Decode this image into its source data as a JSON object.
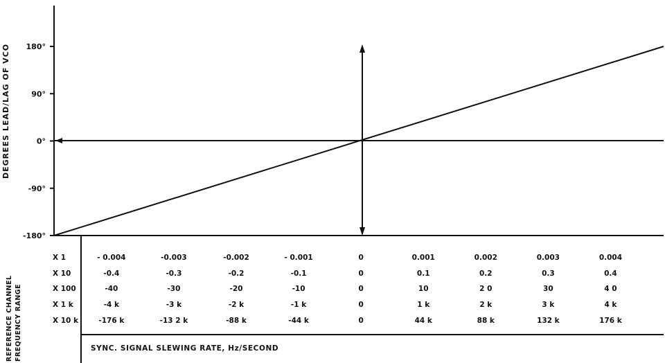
{
  "chart_data": {
    "type": "line",
    "ylabel": "DEGREES LEAD/LAG OF VCO",
    "xlabel": "SYNC. SIGNAL SLEWING RATE, Hz/SECOND",
    "side_label_1": "REFERENCE CHANNEL",
    "side_label_2": "FREQUENCY RANGE",
    "ylim": [
      -180,
      180
    ],
    "yticks": [
      -180,
      -90,
      0,
      90,
      180
    ],
    "ytick_labels": [
      "-180°",
      "-90°",
      "0°",
      "90°",
      "180°"
    ],
    "xlim": [
      -0.00492,
      0.00485
    ],
    "series": [
      {
        "x": [
          -0.00492,
          0.00485
        ],
        "y": [
          -180,
          180
        ]
      }
    ],
    "x_positions": [
      -0.004,
      -0.003,
      -0.002,
      -0.001,
      0,
      0.001,
      0.002,
      0.003,
      0.004
    ],
    "table": {
      "rows": [
        {
          "label": "X 1",
          "values": [
            "- 0.004",
            "-0.003",
            "-0.002",
            "- 0.001",
            "0",
            "0.001",
            "0.002",
            "0.003",
            "0.004"
          ]
        },
        {
          "label": "X 10",
          "values": [
            "-0.4",
            "-0.3",
            "-0.2",
            "-0.1",
            "0",
            "0.1",
            "0.2",
            "0.3",
            "0.4"
          ]
        },
        {
          "label": "X 100",
          "values": [
            "-40",
            "-30",
            "-20",
            "-10",
            "0",
            "10",
            "2 0",
            "30",
            "4 0"
          ]
        },
        {
          "label": "X 1 k",
          "values": [
            "-4 k",
            "-3 k",
            "-2 k",
            "-1 k",
            "0",
            "1 k",
            "2 k",
            "3 k",
            "4 k"
          ]
        },
        {
          "label": "X 10 k",
          "values": [
            "-176 k",
            "-13 2 k",
            "-88 k",
            "-44 k",
            "0",
            "44 k",
            "88 k",
            "132 k",
            "176 k"
          ]
        }
      ]
    }
  }
}
